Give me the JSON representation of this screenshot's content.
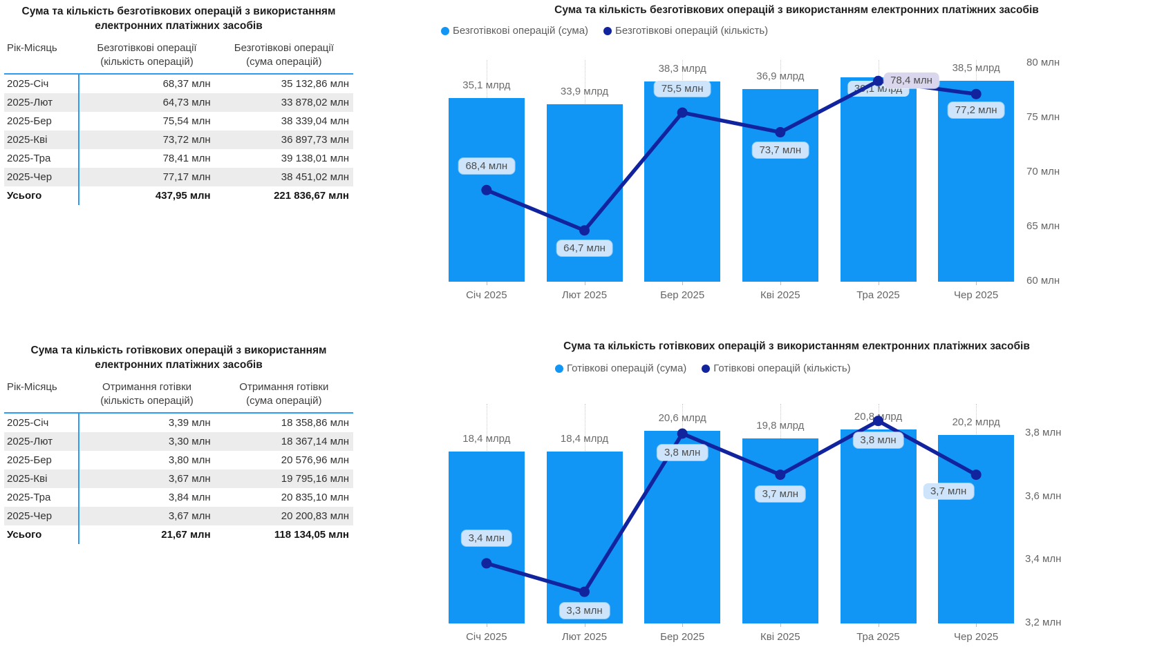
{
  "colors": {
    "bar": "#1296f6",
    "line": "#12239e",
    "line_label_bg": "#cde4fa",
    "line_label_bg_alt": "#d9d6ee",
    "table_accent": "#2e9bf2"
  },
  "table1": {
    "title": "Сума та кількість безготівкових операцій з використанням електронних платіжних засобів",
    "columns": [
      {
        "label": "Рік-Місяць",
        "sub": ""
      },
      {
        "label": "Безготівкові операції",
        "sub": "(кількість операцій)"
      },
      {
        "label": "Безготівкові операції",
        "sub": "(сума операцій)"
      }
    ],
    "rows": [
      [
        "2025-Січ",
        "68,37 млн",
        "35 132,86 млн"
      ],
      [
        "2025-Лют",
        "64,73 млн",
        "33 878,02 млн"
      ],
      [
        "2025-Бер",
        "75,54 млн",
        "38 339,04 млн"
      ],
      [
        "2025-Кві",
        "73,72 млн",
        "36 897,73 млн"
      ],
      [
        "2025-Тра",
        "78,41 млн",
        "39 138,01 млн"
      ],
      [
        "2025-Чер",
        "77,17 млн",
        "38 451,02 млн"
      ]
    ],
    "total": [
      "Усього",
      "437,95 млн",
      "221 836,67 млн"
    ]
  },
  "table2": {
    "title": "Сума та кількість готівкових операцій з використанням електронних платіжних засобів",
    "columns": [
      {
        "label": "Рік-Місяць",
        "sub": ""
      },
      {
        "label": "Отримання готівки",
        "sub": "(кількість операцій)"
      },
      {
        "label": "Отримання готівки",
        "sub": "(сума операцій)"
      }
    ],
    "rows": [
      [
        "2025-Січ",
        "3,39 млн",
        "18 358,86 млн"
      ],
      [
        "2025-Лют",
        "3,30 млн",
        "18 367,14 млн"
      ],
      [
        "2025-Бер",
        "3,80 млн",
        "20 576,96 млн"
      ],
      [
        "2025-Кві",
        "3,67 млн",
        "19 795,16 млн"
      ],
      [
        "2025-Тра",
        "3,84 млн",
        "20 835,10 млн"
      ],
      [
        "2025-Чер",
        "3,67 млн",
        "20 200,83 млн"
      ]
    ],
    "total": [
      "Усього",
      "21,67 млн",
      "118 134,05 млн"
    ]
  },
  "chart_data": [
    {
      "type": "bar",
      "subtype": "combo bar+line, dual axis",
      "title": "Сума та кількість безготівкових операцій з використанням електронних платіжних засобів",
      "categories": [
        "Січ 2025",
        "Лют 2025",
        "Бер 2025",
        "Кві 2025",
        "Тра 2025",
        "Чер 2025"
      ],
      "series": [
        {
          "name": "Безготівкові операцій (сума)",
          "type": "bar",
          "unit": "млрд",
          "values": [
            35.1,
            33.9,
            38.3,
            36.9,
            39.1,
            38.5
          ],
          "labels": [
            "35,1 млрд",
            "33,9 млрд",
            "38,3 млрд",
            "36,9 млрд",
            "39,1 млрд",
            "38,5 млрд"
          ],
          "color": "#1296f6"
        },
        {
          "name": "Безготівкові операцій (кількість)",
          "type": "line",
          "unit": "млн",
          "values": [
            68.4,
            64.7,
            75.5,
            73.7,
            78.4,
            77.2
          ],
          "labels": [
            "68,4 млн",
            "64,7 млн",
            "75,5 млн",
            "73,7 млн",
            "78,4 млн",
            "77,2 млн"
          ],
          "color": "#12239e"
        }
      ],
      "line_axis": {
        "position": "right",
        "min": 60,
        "max": 80,
        "ticks": [
          {
            "value": 80,
            "label": "80 млн"
          },
          {
            "value": 75,
            "label": "75 млн"
          },
          {
            "value": 70,
            "label": "70 млн"
          },
          {
            "value": 65,
            "label": "65 млн"
          },
          {
            "value": 60,
            "label": "60 млн"
          }
        ]
      },
      "bar_axis": {
        "hidden": true,
        "min": 0
      },
      "legend_position": "top-left",
      "grid": "vertical dotted per category"
    },
    {
      "type": "bar",
      "subtype": "combo bar+line, dual axis",
      "title": "Сума та кількість готівкових операцій з використанням електронних платіжних засобів",
      "categories": [
        "Січ 2025",
        "Лют 2025",
        "Бер 2025",
        "Кві 2025",
        "Тра 2025",
        "Чер 2025"
      ],
      "series": [
        {
          "name": "Готівкові операцій (сума)",
          "type": "bar",
          "unit": "млрд",
          "values": [
            18.4,
            18.4,
            20.6,
            19.8,
            20.8,
            20.2
          ],
          "labels": [
            "18,4 млрд",
            "18,4 млрд",
            "20,6 млрд",
            "19,8 млрд",
            "20,8 млрд",
            "20,2 млрд"
          ],
          "color": "#1296f6"
        },
        {
          "name": "Готівкові операцій (кількість)",
          "type": "line",
          "unit": "млн",
          "values": [
            3.39,
            3.3,
            3.8,
            3.67,
            3.84,
            3.67
          ],
          "labels": [
            "3,4 млн",
            "3,3 млн",
            "3,8 млн",
            "3,7 млн",
            "3,8 млн",
            "3,7 млн"
          ],
          "color": "#12239e"
        }
      ],
      "line_axis": {
        "position": "right",
        "min": 3.2,
        "max": 3.8,
        "ticks": [
          {
            "value": 3.8,
            "label": "3,8 млн"
          },
          {
            "value": 3.6,
            "label": "3,6 млн"
          },
          {
            "value": 3.4,
            "label": "3,4 млн"
          },
          {
            "value": 3.2,
            "label": "3,2 млн"
          }
        ]
      },
      "bar_axis": {
        "hidden": true,
        "min": 0
      },
      "legend_position": "top-left",
      "grid": "vertical dotted per category"
    }
  ]
}
